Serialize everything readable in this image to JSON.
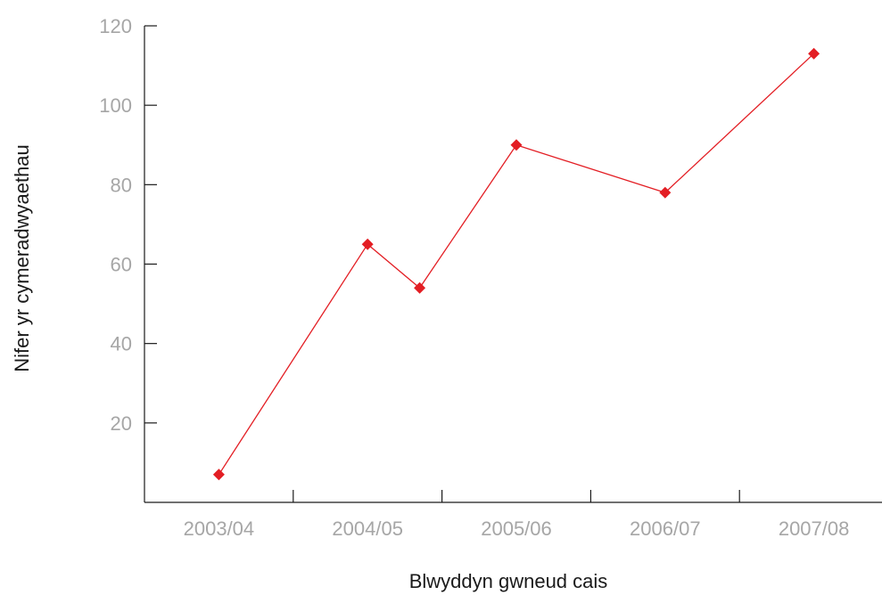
{
  "chart_data": {
    "type": "line",
    "title": "",
    "xlabel": "Blwyddyn gwneud cais",
    "ylabel": "Nifer yr cymeradwyaethau",
    "ylim": [
      0,
      120
    ],
    "yticks": [
      20,
      40,
      60,
      80,
      100,
      120
    ],
    "categories": [
      "2003/04",
      "2004/05",
      "2005/06",
      "2006/07",
      "2007/08"
    ],
    "xlim": [
      0,
      5
    ],
    "grid": false,
    "legend": "none",
    "series": [
      {
        "name": "",
        "color": "#e31e24",
        "marker": "diamond",
        "points": [
          {
            "x": 0.5,
            "y": 7
          },
          {
            "x": 1.5,
            "y": 65
          },
          {
            "x": 1.85,
            "y": 54
          },
          {
            "x": 2.5,
            "y": 90
          },
          {
            "x": 3.5,
            "y": 78
          },
          {
            "x": 4.5,
            "y": 113
          }
        ]
      }
    ]
  },
  "colors": {
    "axis": "#1a1a1a",
    "tick_text": "#a6a6a6",
    "series": "#e31e24"
  }
}
